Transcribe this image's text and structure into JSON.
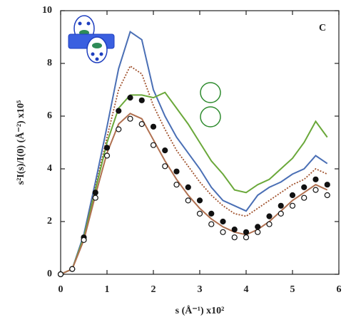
{
  "chart_data": {
    "type": "line",
    "panel_label": "C",
    "xlabel": "s (Å⁻¹) x10²",
    "ylabel": "s²I(s)/I(0) (Å⁻²) x10⁵",
    "xlim": [
      0,
      6
    ],
    "ylim": [
      0,
      10
    ],
    "xticks": [
      0,
      1,
      2,
      3,
      4,
      5,
      6
    ],
    "yticks": [
      0,
      2,
      4,
      6,
      8,
      10
    ],
    "x": [
      0,
      0.25,
      0.5,
      0.75,
      1,
      1.25,
      1.5,
      1.75,
      2,
      2.25,
      2.5,
      2.75,
      3,
      3.25,
      3.5,
      3.75,
      4,
      4.25,
      4.5,
      4.75,
      5,
      5.25,
      5.5,
      5.75
    ],
    "series": [
      {
        "color": "#4a6fb5",
        "style": "line",
        "values": [
          0,
          0.2,
          1.5,
          3.5,
          5.6,
          7.8,
          9.2,
          8.9,
          7.0,
          6.0,
          5.2,
          4.6,
          4.0,
          3.3,
          2.8,
          2.6,
          2.4,
          3.0,
          3.3,
          3.5,
          3.8,
          4.0,
          4.5,
          4.2
        ]
      },
      {
        "color": "#a0522d",
        "style": "dotted",
        "values": [
          0,
          0.2,
          1.4,
          3.3,
          5.2,
          7.0,
          7.9,
          7.6,
          6.4,
          5.5,
          4.7,
          4.1,
          3.5,
          3.0,
          2.6,
          2.3,
          2.2,
          2.5,
          2.8,
          3.1,
          3.4,
          3.6,
          4.0,
          3.8
        ]
      },
      {
        "color": "#6aa83a",
        "style": "line",
        "values": [
          0,
          0.2,
          1.4,
          3.2,
          5.0,
          6.3,
          6.8,
          6.8,
          6.7,
          6.9,
          6.3,
          5.7,
          5.0,
          4.3,
          3.8,
          3.2,
          3.1,
          3.4,
          3.6,
          4.0,
          4.4,
          5.0,
          5.8,
          5.2
        ]
      },
      {
        "color": "#b07050",
        "style": "line",
        "values": [
          0,
          0.2,
          1.3,
          3.0,
          4.6,
          5.7,
          6.1,
          5.9,
          5.1,
          4.3,
          3.6,
          3.0,
          2.5,
          2.1,
          1.8,
          1.6,
          1.5,
          1.7,
          2.0,
          2.4,
          2.8,
          3.1,
          3.4,
          3.2
        ]
      },
      {
        "color": "#111111",
        "style": "filled-circle",
        "values": [
          0,
          0.2,
          1.4,
          3.1,
          4.8,
          6.2,
          6.7,
          6.6,
          5.6,
          4.7,
          3.9,
          3.3,
          2.8,
          2.3,
          2.0,
          1.7,
          1.6,
          1.8,
          2.2,
          2.6,
          3.0,
          3.3,
          3.6,
          3.4
        ]
      },
      {
        "color": "#111111",
        "style": "open-circle",
        "values": [
          0,
          0.2,
          1.3,
          2.9,
          4.5,
          5.5,
          5.9,
          5.7,
          4.9,
          4.1,
          3.4,
          2.8,
          2.3,
          1.9,
          1.6,
          1.4,
          1.4,
          1.6,
          1.9,
          2.3,
          2.6,
          2.9,
          3.2,
          3.0
        ]
      }
    ]
  }
}
